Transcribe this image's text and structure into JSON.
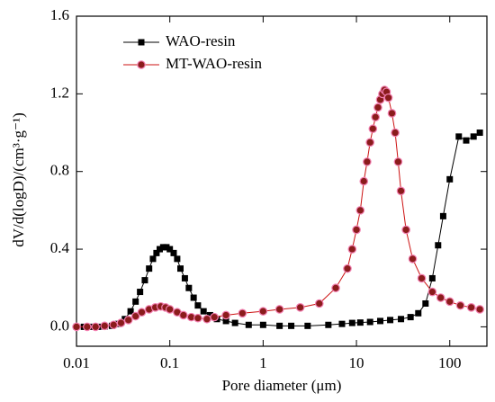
{
  "chart_data": {
    "type": "line",
    "xlabel": "Pore diameter (μm)",
    "ylabel": "dV/d(logD)/(cm³·g⁻¹)",
    "xscale": "log",
    "xlim": [
      0.01,
      250
    ],
    "xticks": [
      0.01,
      0.1,
      1,
      10,
      100
    ],
    "ylim": [
      -0.1,
      1.6
    ],
    "yticks": [
      {
        "value": 0,
        "label": "0.0"
      },
      0.4,
      0.8,
      1.2,
      1.6
    ],
    "legend": "upper left",
    "series": [
      {
        "name": "WAO-resin",
        "color": "#000000",
        "marker": "square",
        "x": [
          0.01,
          0.012,
          0.014,
          0.017,
          0.02,
          0.024,
          0.028,
          0.033,
          0.038,
          0.043,
          0.048,
          0.054,
          0.06,
          0.066,
          0.072,
          0.078,
          0.085,
          0.092,
          0.1,
          0.11,
          0.12,
          0.13,
          0.145,
          0.16,
          0.18,
          0.2,
          0.23,
          0.27,
          0.32,
          0.4,
          0.5,
          0.7,
          1,
          1.5,
          2,
          3,
          5,
          7,
          9,
          11,
          14,
          18,
          23,
          30,
          38,
          46,
          55,
          65,
          75,
          85,
          100,
          125,
          150,
          180,
          210
        ],
        "values": [
          0,
          0,
          0,
          0,
          0.002,
          0.005,
          0.015,
          0.04,
          0.08,
          0.13,
          0.18,
          0.24,
          0.3,
          0.35,
          0.38,
          0.4,
          0.41,
          0.41,
          0.4,
          0.38,
          0.35,
          0.3,
          0.25,
          0.2,
          0.15,
          0.11,
          0.08,
          0.06,
          0.04,
          0.03,
          0.02,
          0.01,
          0.01,
          0.005,
          0.005,
          0.005,
          0.01,
          0.015,
          0.02,
          0.022,
          0.025,
          0.03,
          0.035,
          0.04,
          0.05,
          0.07,
          0.12,
          0.25,
          0.42,
          0.57,
          0.76,
          0.98,
          0.96,
          0.98,
          1.0
        ]
      },
      {
        "name": "MT-WAO-resin",
        "color": "#cc1111",
        "marker": "circle",
        "x": [
          0.01,
          0.013,
          0.016,
          0.02,
          0.025,
          0.03,
          0.036,
          0.043,
          0.05,
          0.06,
          0.07,
          0.08,
          0.09,
          0.1,
          0.12,
          0.14,
          0.17,
          0.2,
          0.25,
          0.3,
          0.4,
          0.6,
          1,
          1.5,
          2.5,
          4,
          6,
          8,
          9,
          10,
          11,
          12,
          13,
          14,
          15,
          16,
          17,
          18,
          19,
          20,
          21,
          22,
          24,
          26,
          28,
          30,
          34,
          40,
          50,
          65,
          80,
          100,
          130,
          170,
          210
        ],
        "values": [
          0,
          0,
          0,
          0.005,
          0.01,
          0.02,
          0.035,
          0.055,
          0.075,
          0.09,
          0.1,
          0.105,
          0.1,
          0.09,
          0.075,
          0.06,
          0.05,
          0.045,
          0.04,
          0.05,
          0.06,
          0.07,
          0.08,
          0.09,
          0.1,
          0.12,
          0.2,
          0.3,
          0.4,
          0.5,
          0.6,
          0.75,
          0.85,
          0.95,
          1.02,
          1.08,
          1.13,
          1.17,
          1.2,
          1.22,
          1.21,
          1.18,
          1.1,
          1.0,
          0.85,
          0.7,
          0.5,
          0.35,
          0.25,
          0.18,
          0.15,
          0.13,
          0.11,
          0.1,
          0.09
        ]
      }
    ]
  }
}
